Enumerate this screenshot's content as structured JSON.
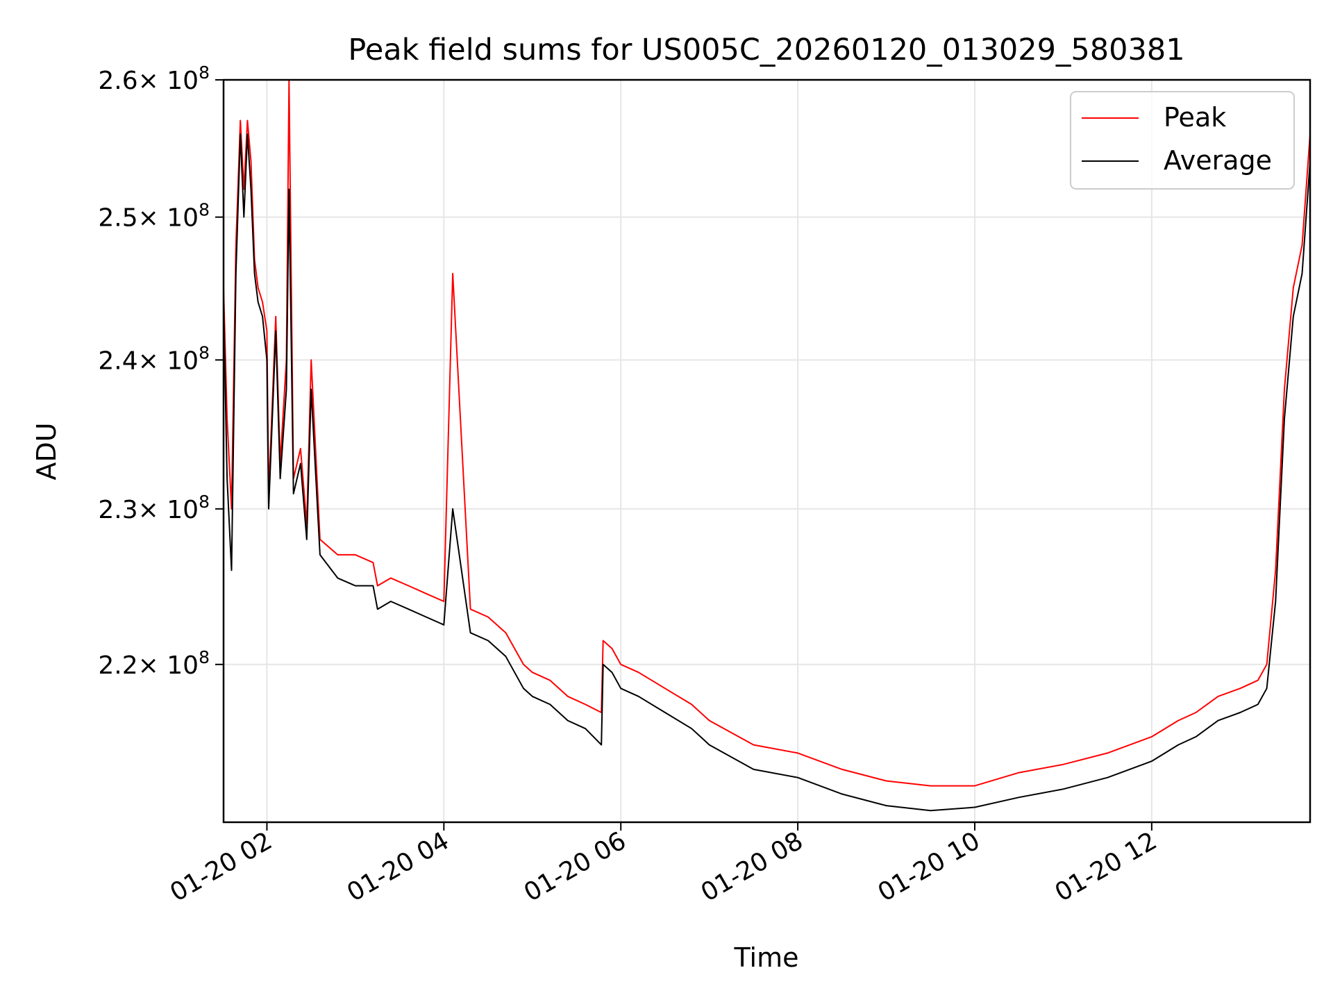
{
  "chart_data": {
    "type": "line",
    "title": "Peak field sums for US005C_20260120_013029_580381",
    "xlabel": "Time",
    "ylabel": "ADU",
    "yscale": "log",
    "grid": true,
    "legend_position": "top-right",
    "x_ticks": [
      {
        "hour": 2,
        "label": "01-20 02"
      },
      {
        "hour": 4,
        "label": "01-20 04"
      },
      {
        "hour": 6,
        "label": "01-20 06"
      },
      {
        "hour": 8,
        "label": "01-20 08"
      },
      {
        "hour": 10,
        "label": "01-20 10"
      },
      {
        "hour": 12,
        "label": "01-20 12"
      }
    ],
    "xlim_hours": [
      1.51,
      13.79
    ],
    "y_ticks": [
      {
        "value": 220000000,
        "mantissa": "2.2"
      },
      {
        "value": 230000000,
        "mantissa": "2.3"
      },
      {
        "value": 240000000,
        "mantissa": "2.4"
      },
      {
        "value": 250000000,
        "mantissa": "2.5"
      },
      {
        "value": 260000000,
        "mantissa": "2.6"
      }
    ],
    "y_tick_base": "× 10",
    "y_tick_exp": "8",
    "ylim": [
      210300000,
      260000000
    ],
    "series": [
      {
        "name": "Peak",
        "color": "#ff0000",
        "x_hours": [
          1.51,
          1.55,
          1.6,
          1.65,
          1.7,
          1.74,
          1.78,
          1.82,
          1.86,
          1.9,
          1.95,
          2.0,
          2.02,
          2.1,
          2.15,
          2.22,
          2.25,
          2.3,
          2.38,
          2.45,
          2.5,
          2.6,
          2.8,
          3.0,
          3.2,
          3.25,
          3.4,
          3.6,
          3.8,
          4.0,
          4.1,
          4.3,
          4.5,
          4.7,
          4.9,
          5.0,
          5.2,
          5.4,
          5.6,
          5.78,
          5.8,
          5.9,
          6.0,
          6.2,
          6.5,
          6.8,
          7.0,
          7.5,
          8.0,
          8.5,
          9.0,
          9.5,
          10.0,
          10.5,
          11.0,
          11.5,
          12.0,
          12.3,
          12.5,
          12.75,
          13.0,
          13.2,
          13.3,
          13.4,
          13.5,
          13.6,
          13.7,
          13.79
        ],
        "values": [
          245000000,
          236000000,
          230000000,
          248000000,
          257000000,
          252000000,
          257000000,
          254000000,
          247000000,
          245000000,
          244000000,
          242000000,
          231000000,
          243000000,
          233000000,
          240000000,
          260000000,
          232000000,
          234000000,
          229000000,
          240000000,
          228000000,
          227000000,
          227000000,
          226500000,
          225000000,
          225500000,
          225000000,
          224500000,
          224000000,
          246000000,
          223500000,
          223000000,
          222000000,
          220000000,
          219500000,
          219000000,
          218000000,
          217500000,
          217000000,
          221500000,
          221000000,
          220000000,
          219500000,
          218500000,
          217500000,
          216500000,
          215000000,
          214500000,
          213500000,
          212800000,
          212500000,
          212500000,
          213300000,
          213800000,
          214500000,
          215500000,
          216500000,
          217000000,
          218000000,
          218500000,
          219000000,
          220000000,
          226000000,
          238000000,
          245000000,
          248000000,
          256000000
        ]
      },
      {
        "name": "Average",
        "color": "#000000",
        "x_hours": [
          1.51,
          1.55,
          1.6,
          1.65,
          1.7,
          1.74,
          1.78,
          1.82,
          1.86,
          1.9,
          1.95,
          2.0,
          2.02,
          2.1,
          2.15,
          2.22,
          2.25,
          2.3,
          2.38,
          2.45,
          2.5,
          2.6,
          2.8,
          3.0,
          3.2,
          3.25,
          3.4,
          3.6,
          3.8,
          4.0,
          4.1,
          4.3,
          4.5,
          4.7,
          4.9,
          5.0,
          5.2,
          5.4,
          5.6,
          5.78,
          5.8,
          5.9,
          6.0,
          6.2,
          6.5,
          6.8,
          7.0,
          7.5,
          8.0,
          8.5,
          9.0,
          9.5,
          10.0,
          10.5,
          11.0,
          11.5,
          12.0,
          12.3,
          12.5,
          12.75,
          13.0,
          13.2,
          13.3,
          13.4,
          13.5,
          13.6,
          13.7,
          13.79
        ],
        "values": [
          244000000,
          232000000,
          226000000,
          246000000,
          256000000,
          250000000,
          256000000,
          252000000,
          246000000,
          244000000,
          243000000,
          240000000,
          230000000,
          242000000,
          232000000,
          238000000,
          252000000,
          231000000,
          233000000,
          228000000,
          238000000,
          227000000,
          225500000,
          225000000,
          225000000,
          223500000,
          224000000,
          223500000,
          223000000,
          222500000,
          230000000,
          222000000,
          221500000,
          220500000,
          218500000,
          218000000,
          217500000,
          216500000,
          216000000,
          215000000,
          220000000,
          219500000,
          218500000,
          218000000,
          217000000,
          216000000,
          215000000,
          213500000,
          213000000,
          212000000,
          211300000,
          211000000,
          211200000,
          211800000,
          212300000,
          213000000,
          214000000,
          215000000,
          215500000,
          216500000,
          217000000,
          217500000,
          218500000,
          224000000,
          236000000,
          243000000,
          246000000,
          254000000
        ]
      }
    ]
  }
}
